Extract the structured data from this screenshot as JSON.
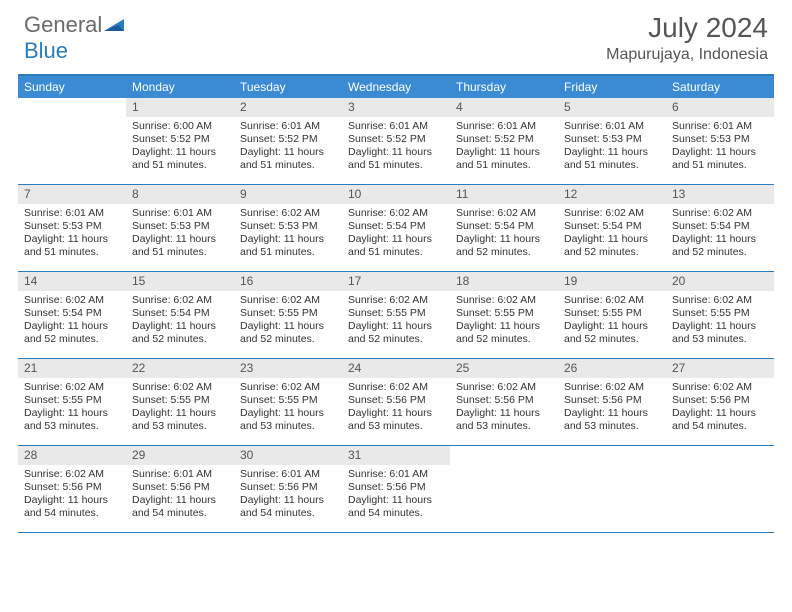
{
  "brand": {
    "part1": "General",
    "part2": "Blue"
  },
  "title": "July 2024",
  "location": "Mapurujaya, Indonesia",
  "colors": {
    "header_bg": "#3b8bd4",
    "border": "#2b7bbf",
    "daynum_bg": "#e9e9e9",
    "text": "#333333",
    "muted": "#555555"
  },
  "day_names": [
    "Sunday",
    "Monday",
    "Tuesday",
    "Wednesday",
    "Thursday",
    "Friday",
    "Saturday"
  ],
  "weeks": [
    [
      {
        "n": "",
        "sr": "",
        "ss": "",
        "dl": ""
      },
      {
        "n": "1",
        "sr": "Sunrise: 6:00 AM",
        "ss": "Sunset: 5:52 PM",
        "dl": "Daylight: 11 hours and 51 minutes."
      },
      {
        "n": "2",
        "sr": "Sunrise: 6:01 AM",
        "ss": "Sunset: 5:52 PM",
        "dl": "Daylight: 11 hours and 51 minutes."
      },
      {
        "n": "3",
        "sr": "Sunrise: 6:01 AM",
        "ss": "Sunset: 5:52 PM",
        "dl": "Daylight: 11 hours and 51 minutes."
      },
      {
        "n": "4",
        "sr": "Sunrise: 6:01 AM",
        "ss": "Sunset: 5:52 PM",
        "dl": "Daylight: 11 hours and 51 minutes."
      },
      {
        "n": "5",
        "sr": "Sunrise: 6:01 AM",
        "ss": "Sunset: 5:53 PM",
        "dl": "Daylight: 11 hours and 51 minutes."
      },
      {
        "n": "6",
        "sr": "Sunrise: 6:01 AM",
        "ss": "Sunset: 5:53 PM",
        "dl": "Daylight: 11 hours and 51 minutes."
      }
    ],
    [
      {
        "n": "7",
        "sr": "Sunrise: 6:01 AM",
        "ss": "Sunset: 5:53 PM",
        "dl": "Daylight: 11 hours and 51 minutes."
      },
      {
        "n": "8",
        "sr": "Sunrise: 6:01 AM",
        "ss": "Sunset: 5:53 PM",
        "dl": "Daylight: 11 hours and 51 minutes."
      },
      {
        "n": "9",
        "sr": "Sunrise: 6:02 AM",
        "ss": "Sunset: 5:53 PM",
        "dl": "Daylight: 11 hours and 51 minutes."
      },
      {
        "n": "10",
        "sr": "Sunrise: 6:02 AM",
        "ss": "Sunset: 5:54 PM",
        "dl": "Daylight: 11 hours and 51 minutes."
      },
      {
        "n": "11",
        "sr": "Sunrise: 6:02 AM",
        "ss": "Sunset: 5:54 PM",
        "dl": "Daylight: 11 hours and 52 minutes."
      },
      {
        "n": "12",
        "sr": "Sunrise: 6:02 AM",
        "ss": "Sunset: 5:54 PM",
        "dl": "Daylight: 11 hours and 52 minutes."
      },
      {
        "n": "13",
        "sr": "Sunrise: 6:02 AM",
        "ss": "Sunset: 5:54 PM",
        "dl": "Daylight: 11 hours and 52 minutes."
      }
    ],
    [
      {
        "n": "14",
        "sr": "Sunrise: 6:02 AM",
        "ss": "Sunset: 5:54 PM",
        "dl": "Daylight: 11 hours and 52 minutes."
      },
      {
        "n": "15",
        "sr": "Sunrise: 6:02 AM",
        "ss": "Sunset: 5:54 PM",
        "dl": "Daylight: 11 hours and 52 minutes."
      },
      {
        "n": "16",
        "sr": "Sunrise: 6:02 AM",
        "ss": "Sunset: 5:55 PM",
        "dl": "Daylight: 11 hours and 52 minutes."
      },
      {
        "n": "17",
        "sr": "Sunrise: 6:02 AM",
        "ss": "Sunset: 5:55 PM",
        "dl": "Daylight: 11 hours and 52 minutes."
      },
      {
        "n": "18",
        "sr": "Sunrise: 6:02 AM",
        "ss": "Sunset: 5:55 PM",
        "dl": "Daylight: 11 hours and 52 minutes."
      },
      {
        "n": "19",
        "sr": "Sunrise: 6:02 AM",
        "ss": "Sunset: 5:55 PM",
        "dl": "Daylight: 11 hours and 52 minutes."
      },
      {
        "n": "20",
        "sr": "Sunrise: 6:02 AM",
        "ss": "Sunset: 5:55 PM",
        "dl": "Daylight: 11 hours and 53 minutes."
      }
    ],
    [
      {
        "n": "21",
        "sr": "Sunrise: 6:02 AM",
        "ss": "Sunset: 5:55 PM",
        "dl": "Daylight: 11 hours and 53 minutes."
      },
      {
        "n": "22",
        "sr": "Sunrise: 6:02 AM",
        "ss": "Sunset: 5:55 PM",
        "dl": "Daylight: 11 hours and 53 minutes."
      },
      {
        "n": "23",
        "sr": "Sunrise: 6:02 AM",
        "ss": "Sunset: 5:55 PM",
        "dl": "Daylight: 11 hours and 53 minutes."
      },
      {
        "n": "24",
        "sr": "Sunrise: 6:02 AM",
        "ss": "Sunset: 5:56 PM",
        "dl": "Daylight: 11 hours and 53 minutes."
      },
      {
        "n": "25",
        "sr": "Sunrise: 6:02 AM",
        "ss": "Sunset: 5:56 PM",
        "dl": "Daylight: 11 hours and 53 minutes."
      },
      {
        "n": "26",
        "sr": "Sunrise: 6:02 AM",
        "ss": "Sunset: 5:56 PM",
        "dl": "Daylight: 11 hours and 53 minutes."
      },
      {
        "n": "27",
        "sr": "Sunrise: 6:02 AM",
        "ss": "Sunset: 5:56 PM",
        "dl": "Daylight: 11 hours and 54 minutes."
      }
    ],
    [
      {
        "n": "28",
        "sr": "Sunrise: 6:02 AM",
        "ss": "Sunset: 5:56 PM",
        "dl": "Daylight: 11 hours and 54 minutes."
      },
      {
        "n": "29",
        "sr": "Sunrise: 6:01 AM",
        "ss": "Sunset: 5:56 PM",
        "dl": "Daylight: 11 hours and 54 minutes."
      },
      {
        "n": "30",
        "sr": "Sunrise: 6:01 AM",
        "ss": "Sunset: 5:56 PM",
        "dl": "Daylight: 11 hours and 54 minutes."
      },
      {
        "n": "31",
        "sr": "Sunrise: 6:01 AM",
        "ss": "Sunset: 5:56 PM",
        "dl": "Daylight: 11 hours and 54 minutes."
      },
      {
        "n": "",
        "sr": "",
        "ss": "",
        "dl": ""
      },
      {
        "n": "",
        "sr": "",
        "ss": "",
        "dl": ""
      },
      {
        "n": "",
        "sr": "",
        "ss": "",
        "dl": ""
      }
    ]
  ]
}
